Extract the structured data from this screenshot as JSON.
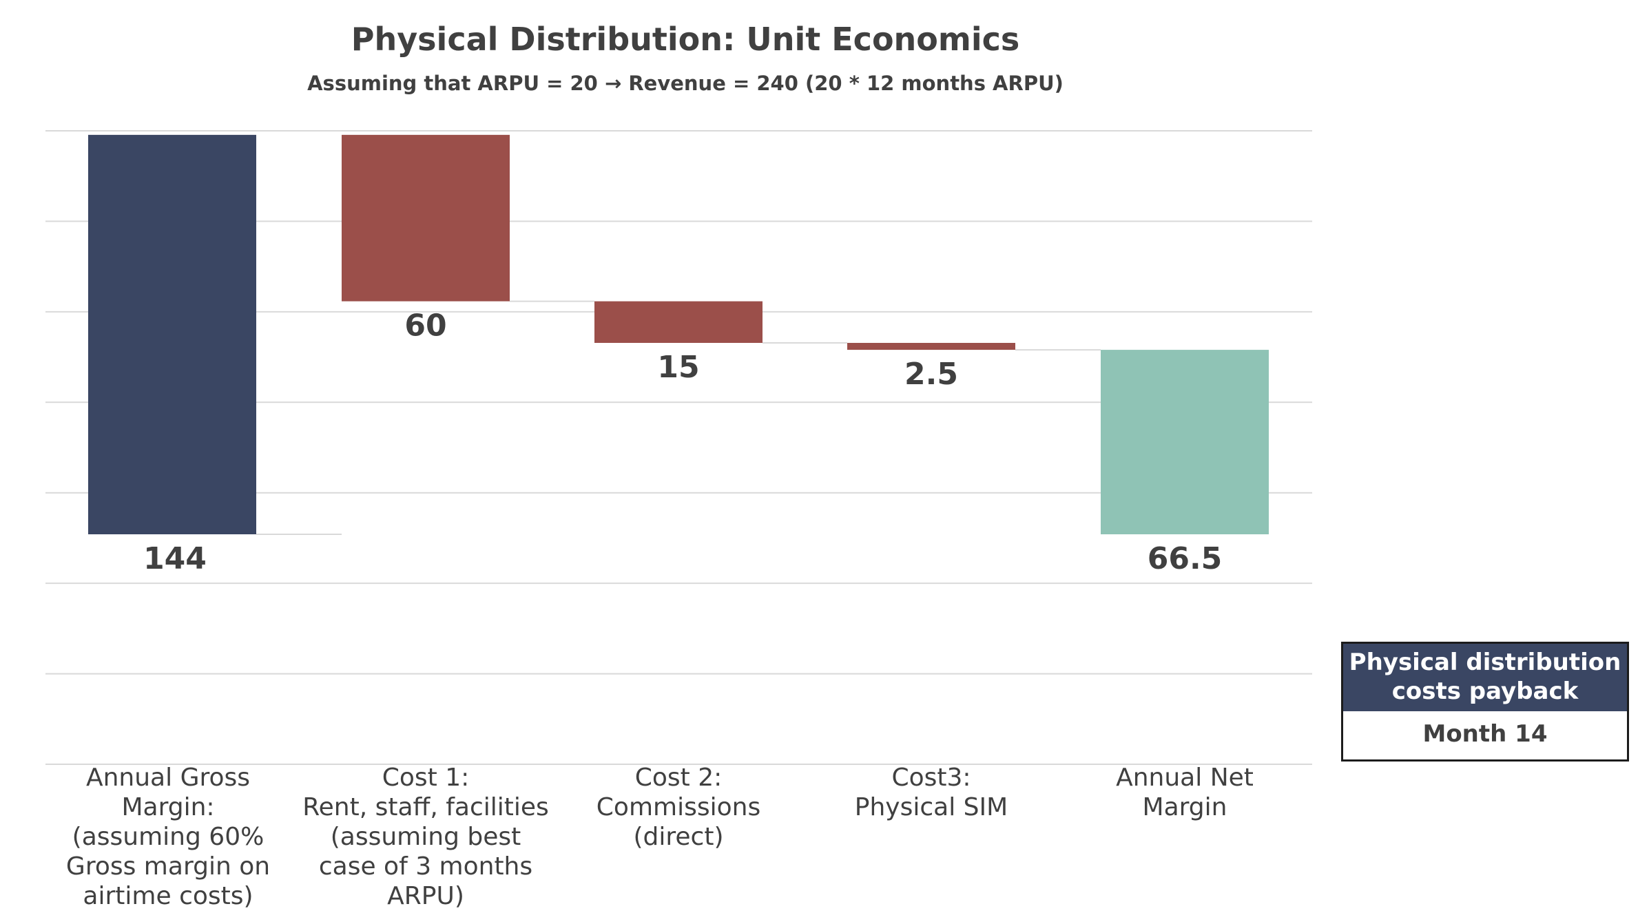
{
  "chart_data": {
    "type": "bar",
    "title": "Physical Distribution: Unit Economics",
    "subtitle": "Assuming that ARPU = 20 → Revenue = 240 (20 * 12 months ARPU)",
    "categories": [
      "Annual Gross\nMargin:\n(assuming 60%\nGross margin on\nairtime costs)",
      "Cost 1:\nRent, staff, facilities\n(assuming best\ncase of 3 months\nARPU)",
      "Cost 2:\nCommissions\n(direct)",
      "Cost3:\nPhysical SIM",
      "Annual Net\nMargin"
    ],
    "values": [
      144,
      60,
      15,
      2.5,
      66.5
    ],
    "value_labels": [
      "144",
      "60",
      "15",
      "2.5",
      "66.5"
    ],
    "waterfall_roles": [
      "total",
      "decrease",
      "decrease",
      "decrease",
      "total"
    ],
    "ylim": [
      -105,
      245
    ],
    "grid": true,
    "colors": {
      "total": "#3a4663",
      "decrease": "#9b4f4a",
      "net": "#8fc3b5",
      "gridline": "#d9d9d9",
      "text": "#404040"
    }
  },
  "payback": {
    "header": "Physical distribution\ncosts payback",
    "value": "Month 14"
  }
}
